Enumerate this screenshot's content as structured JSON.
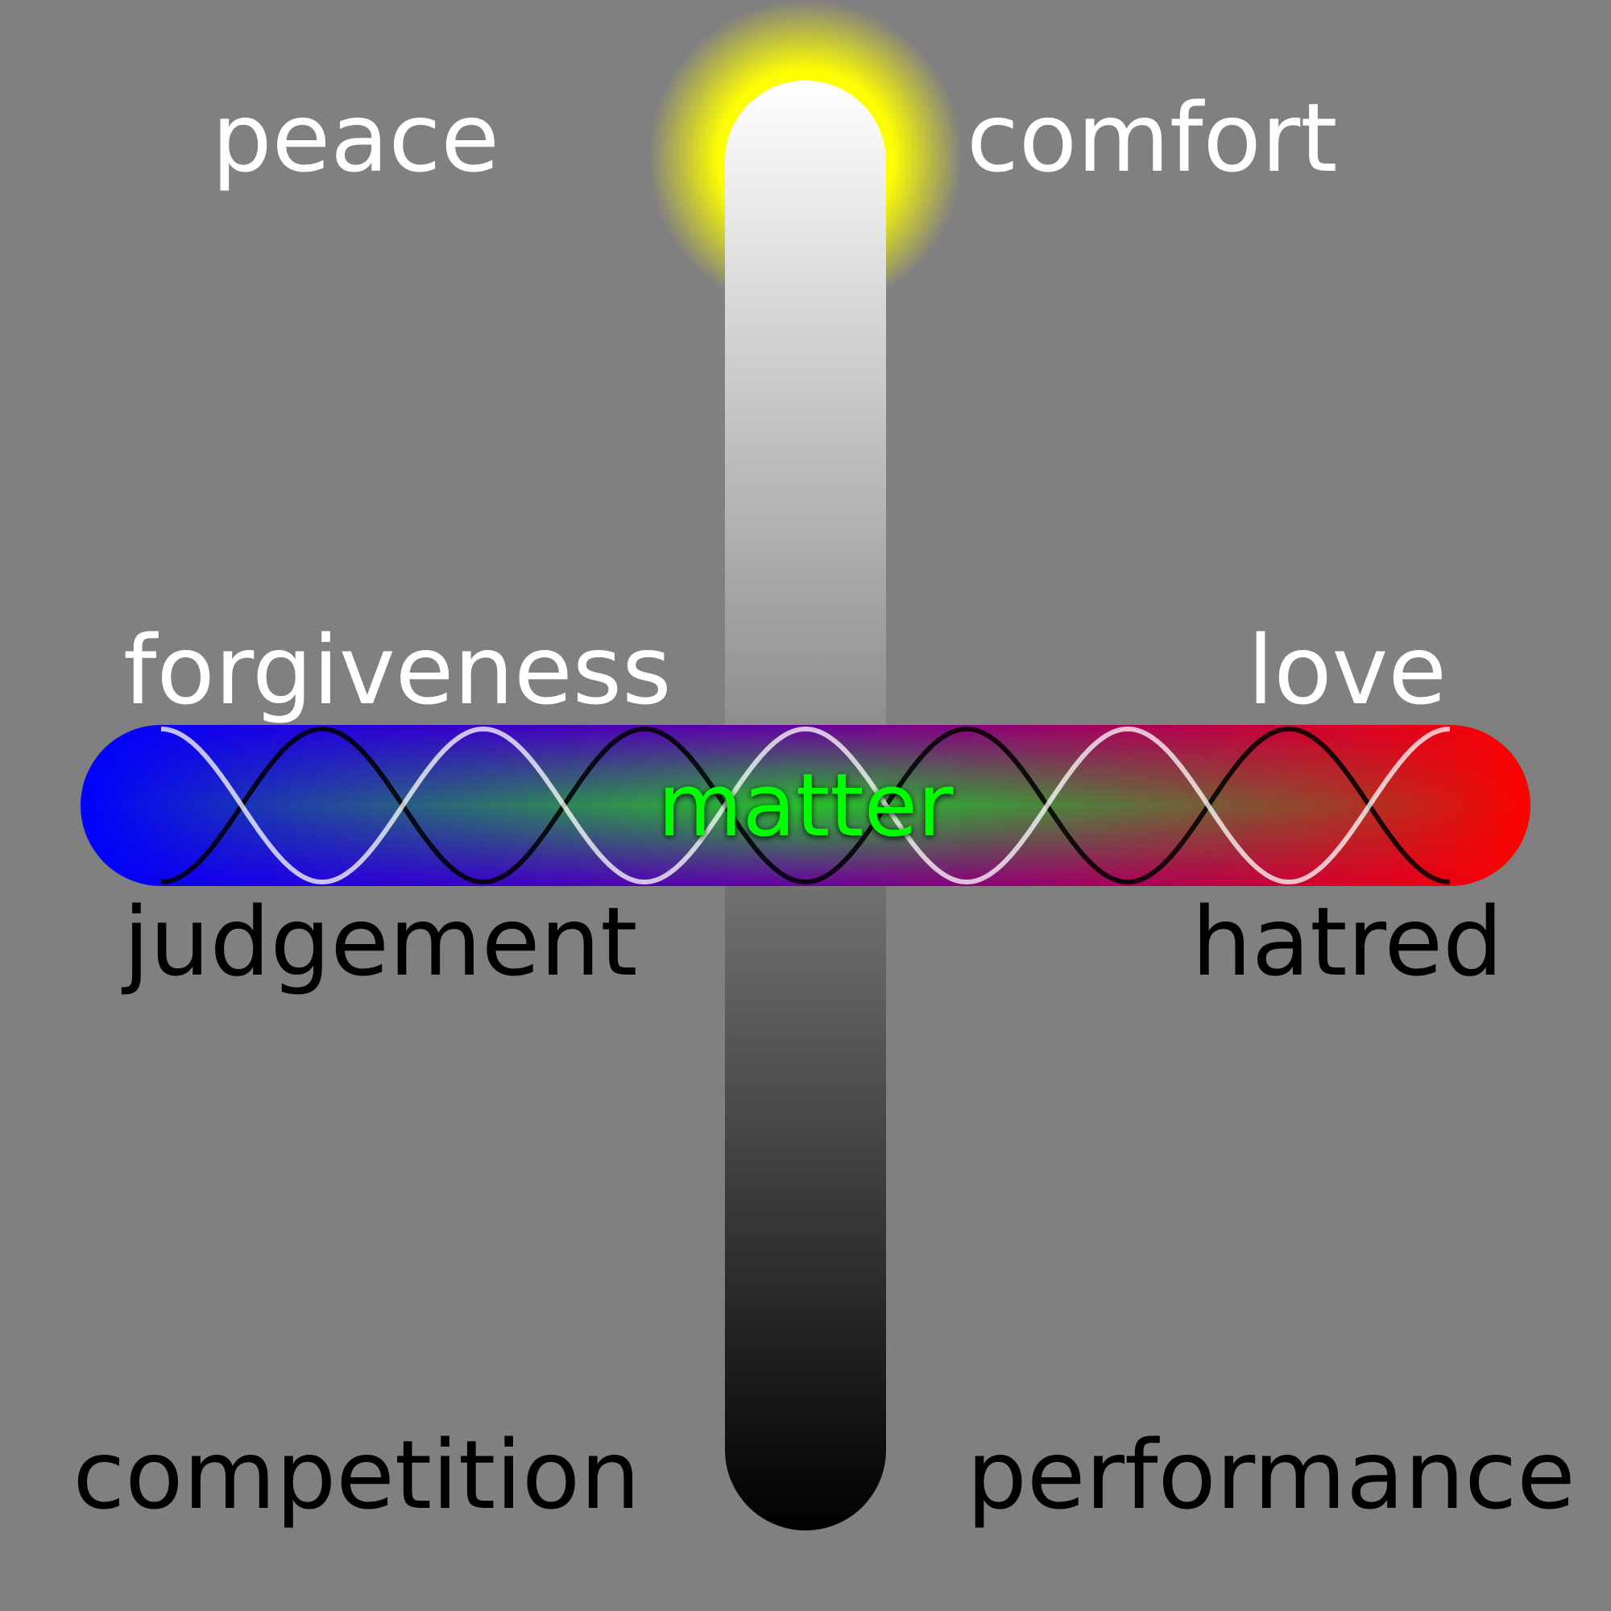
{
  "background_color": "#808080",
  "vertical_bar": {
    "top_color": "#ffffff",
    "bottom_color": "#000000",
    "glow_color": "#ffff00"
  },
  "horizontal_bar": {
    "left_color": "#0000ff",
    "middle_color": "#22cc22",
    "right_color": "#ff0000"
  },
  "labels": {
    "top_left": "peace",
    "top_right": "comfort",
    "upper_left": "forgiveness",
    "upper_right": "love",
    "center": "matter",
    "lower_left": "judgement",
    "lower_right": "hatred",
    "bottom_left": "competition",
    "bottom_right": "performance"
  },
  "label_colors": {
    "light": "#ffffff",
    "dark": "#000000",
    "center": "#00ff00"
  }
}
